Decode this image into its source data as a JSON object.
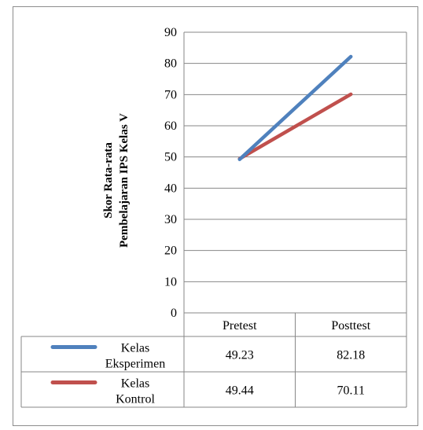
{
  "chart_data": {
    "type": "line",
    "categories": [
      "Pretest",
      "Posttest"
    ],
    "series": [
      {
        "name": "Kelas Eksperimen",
        "name_lines": [
          "Kelas",
          "Eksperimen"
        ],
        "values": [
          49.23,
          82.18
        ],
        "color": "#4f81bd"
      },
      {
        "name": "Kelas Kontrol",
        "name_lines": [
          "Kelas",
          "Kontrol"
        ],
        "values": [
          49.44,
          70.11
        ],
        "color": "#c0504d"
      }
    ],
    "ylabel_lines": [
      "Skor  Rata-rata",
      "Pembelajaran IPS Kelas V"
    ],
    "ylim": [
      0,
      90
    ],
    "yticks": [
      0,
      10,
      20,
      30,
      40,
      50,
      60,
      70,
      80,
      90
    ],
    "grid": true,
    "legend": "data-table-below"
  }
}
